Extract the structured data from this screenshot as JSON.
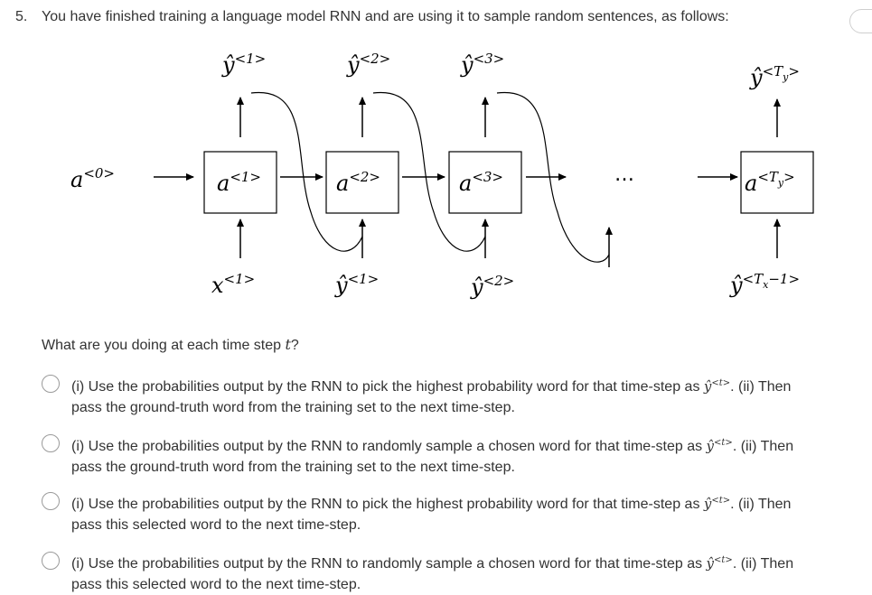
{
  "question": {
    "number": "5.",
    "text": "You have finished training a language model RNN and are using it to sample random sentences, as follows:"
  },
  "diagram": {
    "a0": "a",
    "a0_sup": "<0>",
    "cells": [
      {
        "label": "a",
        "sup": "<1>"
      },
      {
        "label": "a",
        "sup": "<2>"
      },
      {
        "label": "a",
        "sup": "<3>"
      }
    ],
    "last_cell": {
      "label": "a",
      "sup": "<T",
      "sub": "y",
      "sup_end": ">"
    },
    "outputs": [
      {
        "label": "ŷ",
        "sup": "<1>"
      },
      {
        "label": "ŷ",
        "sup": "<2>"
      },
      {
        "label": "ŷ",
        "sup": "<3>"
      }
    ],
    "last_output": {
      "label": "ŷ",
      "sup": "<T",
      "sub": "y",
      "sup_end": ">"
    },
    "inputs": [
      {
        "label": "x",
        "sup": "<1>"
      },
      {
        "label": "ŷ",
        "sup": "<1>"
      },
      {
        "label": "ŷ",
        "sup": "<2>"
      }
    ],
    "last_input": {
      "label": "ŷ",
      "sup": "<T",
      "sub": "x",
      "sup_end": "−1>"
    },
    "ellipsis": "…"
  },
  "prompt": {
    "before": "What are you doing at each time step ",
    "var": "t",
    "after": "?"
  },
  "options": [
    {
      "part1": "(i) Use the probabilities output by the RNN to pick the highest probability word for that time-step as ",
      "yhat": "ŷ",
      "sup": "<t>",
      "part2": ". (ii) Then",
      "line2": "pass the ground-truth word from the training set to the next time-step."
    },
    {
      "part1": "(i) Use the probabilities output by the RNN to randomly sample a chosen word for that time-step as ",
      "yhat": "ŷ",
      "sup": "<t>",
      "part2": ". (ii) Then",
      "line2": "pass the ground-truth word from the training set to the next time-step."
    },
    {
      "part1": "(i) Use the probabilities output by the RNN to pick the highest probability word for that time-step as ",
      "yhat": "ŷ",
      "sup": "<t>",
      "part2": ". (ii) Then",
      "line2": "pass this selected word to the next time-step."
    },
    {
      "part1": "(i) Use the probabilities output by the RNN to randomly sample a chosen word for that time-step as ",
      "yhat": "ŷ",
      "sup": "<t>",
      "part2": ". (ii) Then",
      "line2": "pass this selected word to the next time-step."
    }
  ]
}
